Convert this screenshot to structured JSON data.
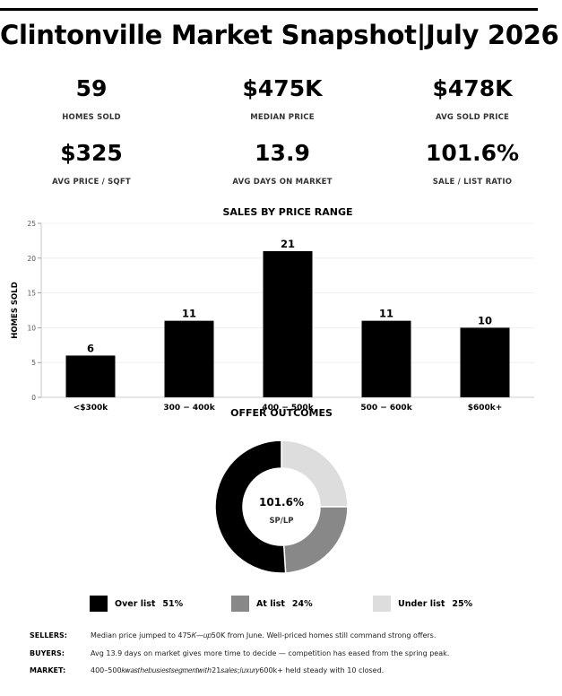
{
  "title": "Clintonville Market Snapshot|July 2026",
  "kpis": [
    {
      "value": "59",
      "label": "HOMES SOLD"
    },
    {
      "value": "$475K",
      "label": "MEDIAN PRICE"
    },
    {
      "value": "$478K",
      "label": "AVG SOLD PRICE"
    },
    {
      "value": "$325",
      "label": "AVG PRICE / SQFT"
    },
    {
      "value": "13.9",
      "label": "AVG DAYS ON MARKET"
    },
    {
      "value": "101.6%",
      "label": "SALE / LIST RATIO"
    }
  ],
  "chart_data": [
    {
      "type": "bar",
      "title": "SALES BY PRICE RANGE",
      "ylabel": "HOMES SOLD",
      "xlabel": "",
      "categories": [
        "<$300k",
        "$300-$400k",
        "$400-$500k",
        "$500-$600k",
        "$600k+"
      ],
      "category_display": [
        "<$300k",
        "300 − 400k",
        "400 − 500k",
        "500 − 600k",
        "$600k+"
      ],
      "values": [
        6,
        11,
        21,
        11,
        10
      ],
      "ylim": [
        0,
        25
      ],
      "yticks": [
        0,
        5,
        10,
        15,
        20,
        25
      ],
      "grid": true,
      "bar_color": "#000000"
    },
    {
      "type": "pie",
      "title": "OFFER OUTCOMES",
      "center_value": "101.6%",
      "center_label": "SP/LP",
      "slices": [
        {
          "label": "Over list",
          "value": 51,
          "display": "51%",
          "color": "#000000"
        },
        {
          "label": "At list",
          "value": 24,
          "display": "24%",
          "color": "#888888"
        },
        {
          "label": "Under list",
          "value": 25,
          "display": "25%",
          "color": "#dddddd"
        }
      ],
      "legend_position": "bottom"
    }
  ],
  "notes": [
    {
      "key": "SELLERS:",
      "text": "Median price jumped to 475𝐾—𝑢𝑝50K from June. Well-priced homes still command strong offers."
    },
    {
      "key": "BUYERS:",
      "text": "Avg 13.9 days on market gives more time to decide — competition has eased from the spring peak."
    },
    {
      "key": "MARKET:",
      "text": "400–500𝑘𝑤𝑎𝑠𝑡ℎ𝑒𝑏𝑢𝑠𝑖𝑒𝑠𝑡𝑠𝑒𝑔𝑚𝑒𝑛𝑡𝑤𝑖𝑡ℎ21𝑠𝑎𝑙𝑒𝑠;𝑙𝑢𝑥𝑢𝑟𝑦600k+ held steady with 10 closed."
    }
  ]
}
